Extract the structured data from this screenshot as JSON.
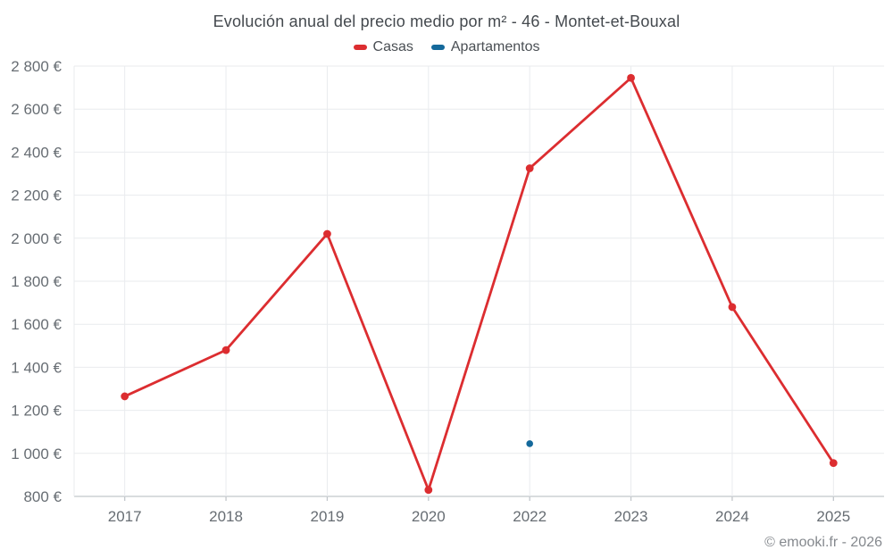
{
  "title": "Evolución anual del precio medio por m² - 46 - Montet-et-Bouxal",
  "footer": "© emooki.fr - 2026",
  "legend": [
    {
      "label": "Casas",
      "color": "#dc2d30"
    },
    {
      "label": "Apartamentos",
      "color": "#14699b"
    }
  ],
  "colors": {
    "casas": "#dc2d30",
    "apartamentos": "#14699b",
    "gridline": "#e9ebee",
    "axis_line": "#c2c7cb",
    "tick_text": "#676d73",
    "title_text": "#44494e",
    "footer_text": "#85898e"
  },
  "chart_data": {
    "type": "line",
    "title": "Evolución anual del precio medio por m² - 46 - Montet-et-Bouxal",
    "xlabel": "",
    "ylabel": "",
    "categories": [
      "2017",
      "2018",
      "2019",
      "2020",
      "2022",
      "2023",
      "2024",
      "2025"
    ],
    "series": [
      {
        "name": "Casas",
        "color": "#dc2d30",
        "style": "line-with-points",
        "values": [
          1265,
          1480,
          2020,
          830,
          2325,
          2745,
          1680,
          955
        ]
      },
      {
        "name": "Apartamentos",
        "color": "#14699b",
        "style": "points-only",
        "values": [
          null,
          null,
          null,
          null,
          1045,
          null,
          null,
          null
        ]
      }
    ],
    "ylim": [
      800,
      2800
    ],
    "y_ticks": [
      {
        "value": 800,
        "label": "800 €"
      },
      {
        "value": 1000,
        "label": "1 000 €"
      },
      {
        "value": 1200,
        "label": "1 200 €"
      },
      {
        "value": 1400,
        "label": "1 400 €"
      },
      {
        "value": 1600,
        "label": "1 600 €"
      },
      {
        "value": 1800,
        "label": "1 800 €"
      },
      {
        "value": 2000,
        "label": "2 000 €"
      },
      {
        "value": 2200,
        "label": "2 200 €"
      },
      {
        "value": 2400,
        "label": "2 400 €"
      },
      {
        "value": 2600,
        "label": "2 600 €"
      },
      {
        "value": 2800,
        "label": "2 800 €"
      }
    ],
    "grid": true,
    "legend_position": "top",
    "currency_suffix": "€"
  }
}
